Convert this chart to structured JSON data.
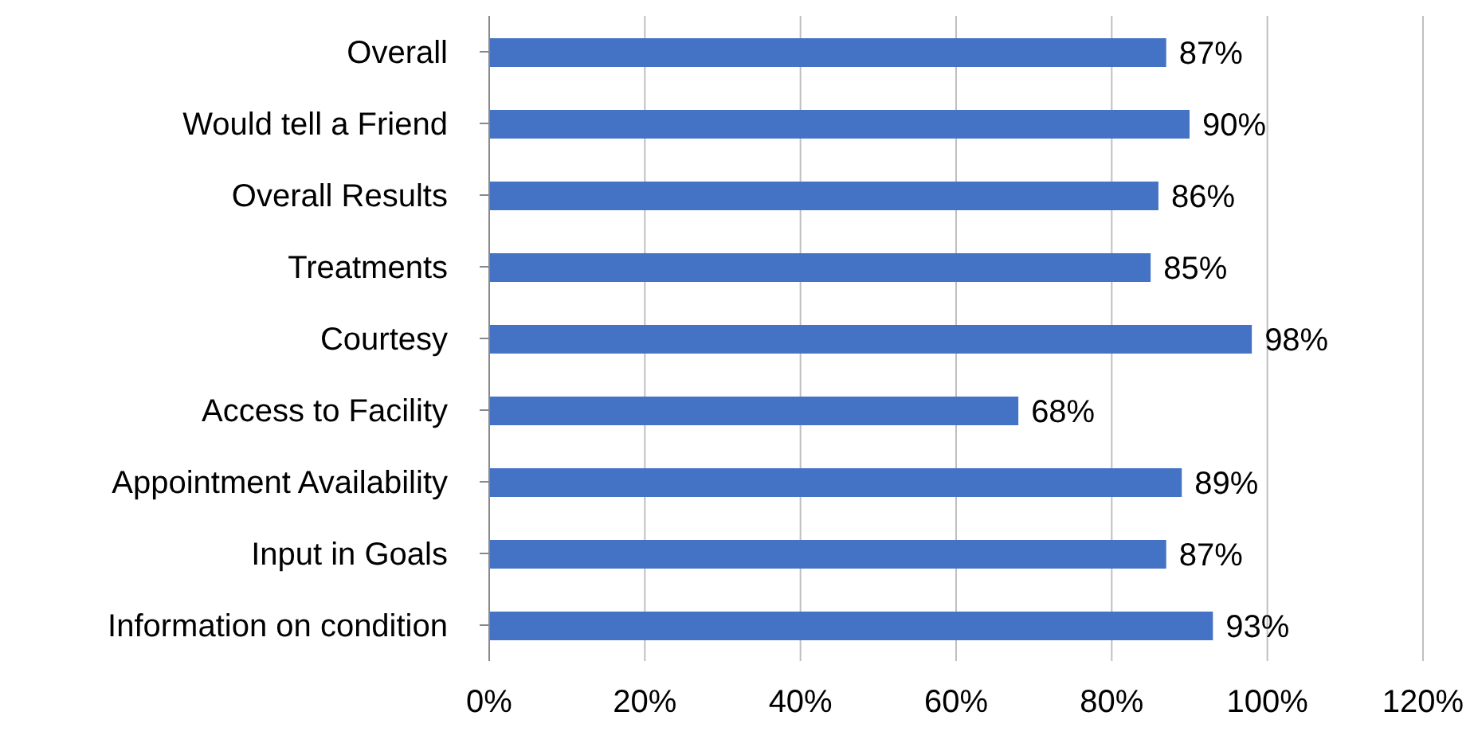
{
  "chart_data": {
    "type": "bar",
    "orientation": "horizontal",
    "categories": [
      "Overall",
      "Would tell a Friend",
      "Overall Results",
      "Treatments",
      "Courtesy",
      "Access to Facility",
      "Appointment Availability",
      "Input in Goals",
      "Information on condition"
    ],
    "values": [
      87,
      90,
      86,
      85,
      98,
      68,
      89,
      87,
      93
    ],
    "value_labels": [
      "87%",
      "90%",
      "86%",
      "85%",
      "98%",
      "68%",
      "89%",
      "87%",
      "93%"
    ],
    "color": "#4472c4",
    "xlim": [
      0,
      120
    ],
    "xticks": [
      {
        "value": 0,
        "label": "0%"
      },
      {
        "value": 20,
        "label": "20%"
      },
      {
        "value": 40,
        "label": "40%"
      },
      {
        "value": 60,
        "label": "60%"
      },
      {
        "value": 80,
        "label": "80%"
      },
      {
        "value": 100,
        "label": "100%"
      },
      {
        "value": 120,
        "label": "120%"
      }
    ],
    "grid": "x",
    "legend": false
  }
}
